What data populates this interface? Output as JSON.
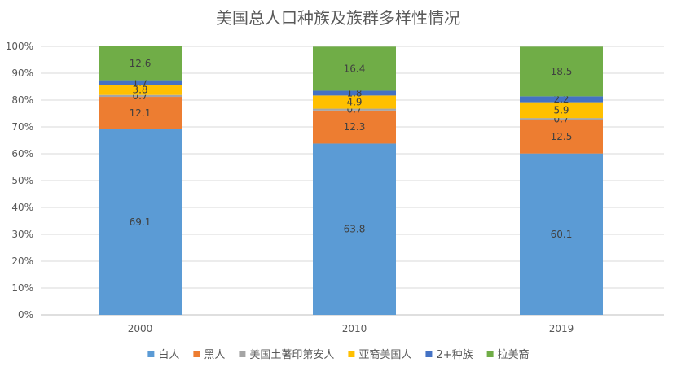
{
  "chart_data": {
    "type": "bar",
    "stacked": true,
    "percent_stacked": true,
    "title": "美国总人口种族及族群多样性情况",
    "categories": [
      "2000",
      "2010",
      "2019"
    ],
    "series": [
      {
        "name": "白人",
        "color": "#5B9BD5",
        "values": [
          69.1,
          63.8,
          60.1
        ]
      },
      {
        "name": "黑人",
        "color": "#ED7D31",
        "values": [
          12.1,
          12.3,
          12.5
        ]
      },
      {
        "name": "美国土著印第安人",
        "color": "#A5A5A5",
        "values": [
          0.7,
          0.7,
          0.7
        ]
      },
      {
        "name": "亚裔美国人",
        "color": "#FFC000",
        "values": [
          3.8,
          4.9,
          5.9
        ]
      },
      {
        "name": "2+种族",
        "color": "#4472C4",
        "values": [
          1.7,
          1.8,
          2.2
        ]
      },
      {
        "name": "拉美裔",
        "color": "#70AD47",
        "values": [
          12.6,
          16.4,
          18.5
        ]
      }
    ],
    "ylim": [
      0,
      100
    ],
    "yticks": [
      "0%",
      "10%",
      "20%",
      "30%",
      "40%",
      "50%",
      "60%",
      "70%",
      "80%",
      "90%",
      "100%"
    ],
    "grid": true,
    "legend_position": "bottom"
  }
}
